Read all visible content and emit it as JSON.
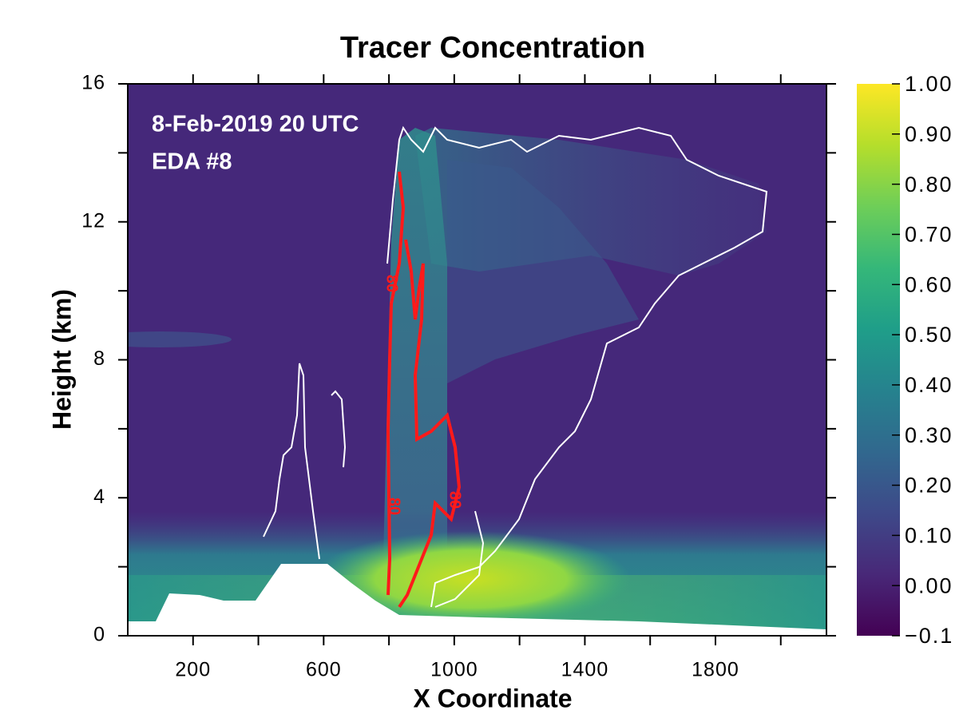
{
  "chart_data": {
    "type": "field",
    "title": "Tracer Concentration",
    "xlabel": "X Coordinate",
    "ylabel": "Height (km)",
    "annotations": [
      "8-Feb-2019 20 UTC",
      "EDA #8"
    ],
    "contour_label": "80",
    "xlim": [
      0,
      2140
    ],
    "ylim": [
      0,
      16
    ],
    "xticks": [
      200,
      600,
      1000,
      1400,
      1800
    ],
    "xminor_ticks": [
      400,
      800,
      1200,
      1600,
      2000
    ],
    "yticks": [
      0,
      4,
      8,
      12,
      16
    ],
    "yminor_ticks": [
      2,
      6,
      10,
      14
    ],
    "clim": [
      -0.1,
      1.0
    ],
    "colorbar_ticks": [
      {
        "value": 1.0,
        "label": "1.00"
      },
      {
        "value": 0.9,
        "label": "0.90"
      },
      {
        "value": 0.8,
        "label": "0.80"
      },
      {
        "value": 0.7,
        "label": "0.70"
      },
      {
        "value": 0.6,
        "label": "0.60"
      },
      {
        "value": 0.5,
        "label": "0.50"
      },
      {
        "value": 0.4,
        "label": "0.40"
      },
      {
        "value": 0.3,
        "label": "0.30"
      },
      {
        "value": 0.2,
        "label": "0.20"
      },
      {
        "value": 0.1,
        "label": "0.10"
      },
      {
        "value": 0.0,
        "label": "0.00"
      },
      {
        "value": -0.1,
        "label": "−0.1"
      }
    ],
    "colormap": [
      "#440154",
      "#482878",
      "#3e4989",
      "#31688e",
      "#26828e",
      "#1f9e89",
      "#35b779",
      "#6ece58",
      "#b5de2b",
      "#fde725"
    ]
  }
}
